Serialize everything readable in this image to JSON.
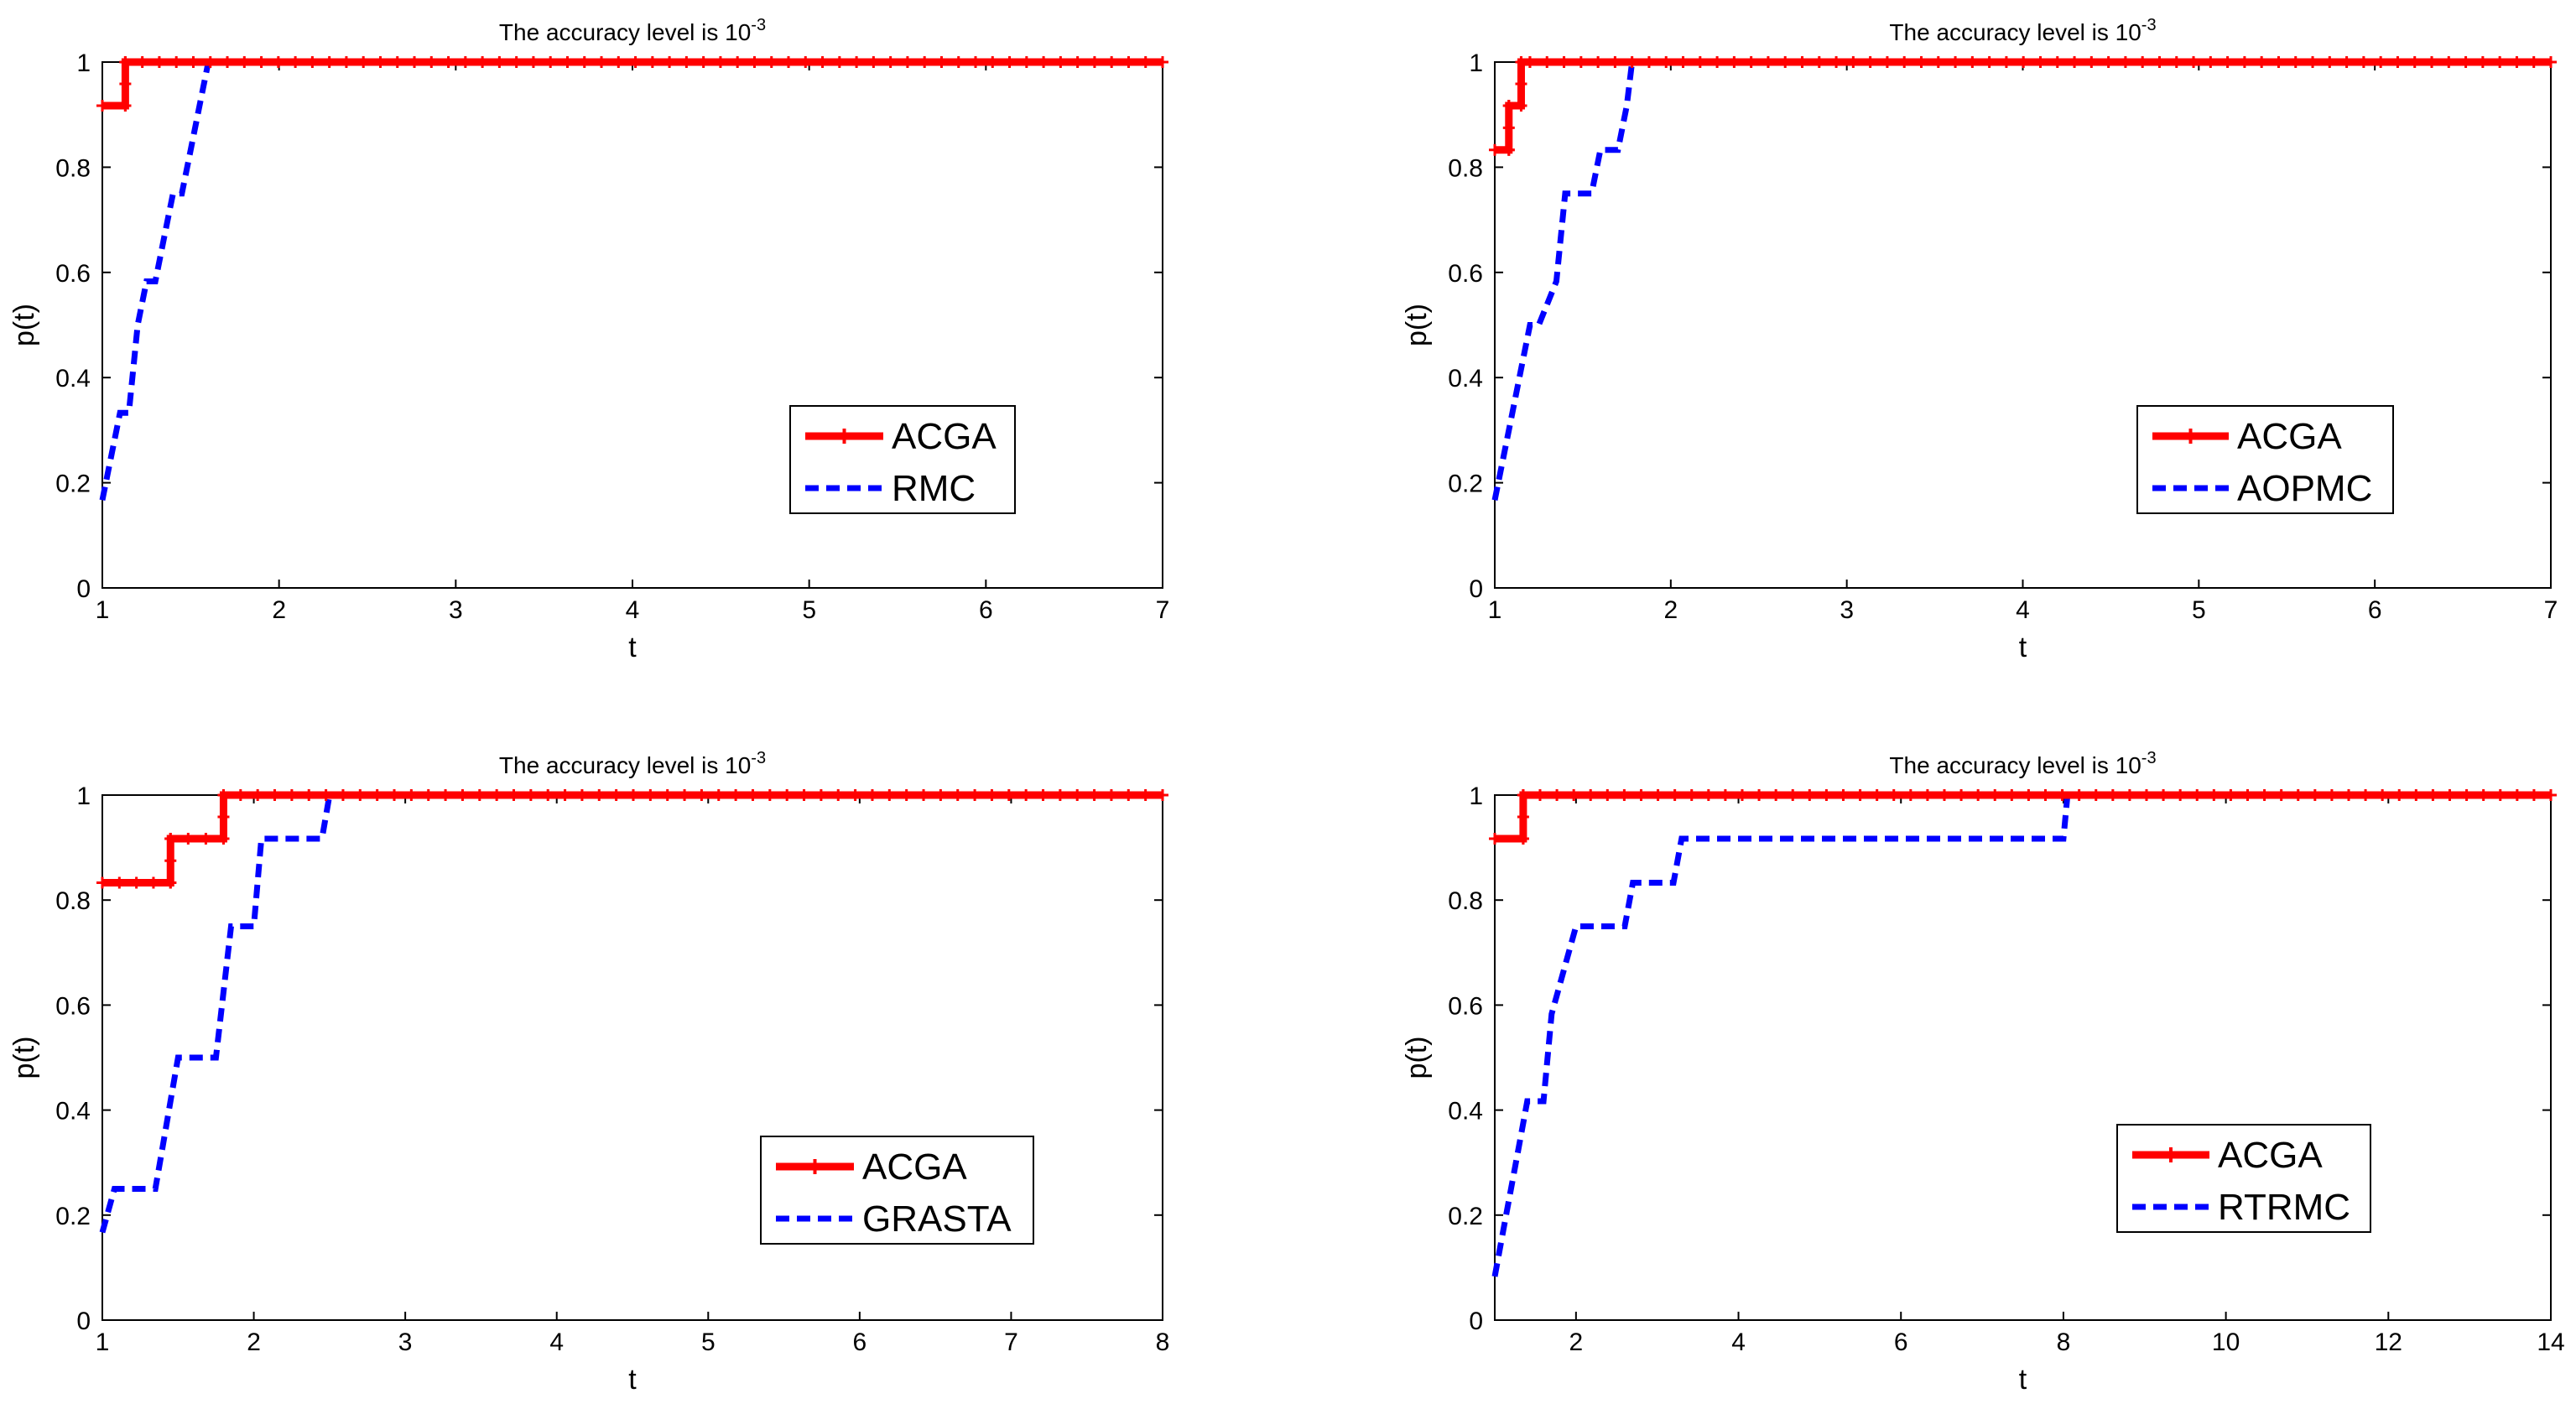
{
  "chart_data": [
    {
      "type": "line",
      "title": "The accuracy level is 10",
      "title_superscript": "-3",
      "xlabel": "t",
      "ylabel": "p(t)",
      "xlim": [
        1,
        7
      ],
      "ylim": [
        0,
        1
      ],
      "xticks": [
        1,
        2,
        3,
        4,
        5,
        6,
        7
      ],
      "yticks": [
        0,
        0.2,
        0.4,
        0.6,
        0.8,
        1
      ],
      "legend_location": "lower-right",
      "series": [
        {
          "name": "ACGA",
          "color": "#ff0000",
          "style": "solid-plus",
          "x": [
            1,
            1.13,
            1.13,
            7
          ],
          "y": [
            0.917,
            0.917,
            1,
            1
          ]
        },
        {
          "name": "RMC",
          "color": "#0000ff",
          "style": "dashed",
          "x": [
            1,
            1.05,
            1.1,
            1.15,
            1.2,
            1.25,
            1.3,
            1.35,
            1.4,
            1.45,
            1.5,
            1.55,
            1.6,
            7
          ],
          "y": [
            0.167,
            0.25,
            0.333,
            0.333,
            0.5,
            0.583,
            0.583,
            0.667,
            0.75,
            0.75,
            0.833,
            0.917,
            1,
            1
          ]
        }
      ]
    },
    {
      "type": "line",
      "title": "The accuracy level is 10",
      "title_superscript": "-3",
      "xlabel": "t",
      "ylabel": "p(t)",
      "xlim": [
        1,
        7
      ],
      "ylim": [
        0,
        1
      ],
      "xticks": [
        1,
        2,
        3,
        4,
        5,
        6,
        7
      ],
      "yticks": [
        0,
        0.2,
        0.4,
        0.6,
        0.8,
        1
      ],
      "legend_location": "lower-right",
      "series": [
        {
          "name": "ACGA",
          "color": "#ff0000",
          "style": "solid-plus",
          "x": [
            1,
            1.08,
            1.08,
            1.15,
            1.15,
            1.2,
            1.2,
            7
          ],
          "y": [
            0.833,
            0.833,
            0.917,
            0.917,
            1,
            1,
            1,
            1
          ]
        },
        {
          "name": "AOPMC",
          "color": "#0000ff",
          "style": "dashed",
          "x": [
            1,
            1.05,
            1.1,
            1.15,
            1.2,
            1.25,
            1.35,
            1.4,
            1.55,
            1.6,
            1.7,
            1.75,
            1.78,
            7
          ],
          "y": [
            0.167,
            0.25,
            0.333,
            0.417,
            0.5,
            0.5,
            0.583,
            0.75,
            0.75,
            0.833,
            0.833,
            0.917,
            1,
            1
          ]
        }
      ]
    },
    {
      "type": "line",
      "title": "The accuracy level is 10",
      "title_superscript": "-3",
      "xlabel": "t",
      "ylabel": "p(t)",
      "xlim": [
        1,
        8
      ],
      "ylim": [
        0,
        1
      ],
      "xticks": [
        1,
        2,
        3,
        4,
        5,
        6,
        7,
        8
      ],
      "yticks": [
        0,
        0.2,
        0.4,
        0.6,
        0.8,
        1
      ],
      "legend_location": "lower-right",
      "series": [
        {
          "name": "ACGA",
          "color": "#ff0000",
          "style": "solid-plus",
          "x": [
            1,
            1.45,
            1.45,
            1.8,
            1.8,
            8
          ],
          "y": [
            0.833,
            0.833,
            0.917,
            0.917,
            1,
            1
          ]
        },
        {
          "name": "GRASTA",
          "color": "#0000ff",
          "style": "dashed",
          "x": [
            1,
            1.08,
            1.35,
            1.4,
            1.45,
            1.5,
            1.75,
            1.85,
            2.0,
            2.05,
            2.45,
            2.5,
            8
          ],
          "y": [
            0.167,
            0.25,
            0.25,
            0.333,
            0.417,
            0.5,
            0.5,
            0.75,
            0.75,
            0.917,
            0.917,
            1,
            1
          ]
        }
      ]
    },
    {
      "type": "line",
      "title": "The accuracy level is 10",
      "title_superscript": "-3",
      "xlabel": "t",
      "ylabel": "p(t)",
      "xlim": [
        1,
        14
      ],
      "ylim": [
        0,
        1
      ],
      "xticks": [
        2,
        4,
        6,
        8,
        10,
        12,
        14
      ],
      "yticks": [
        0,
        0.2,
        0.4,
        0.6,
        0.8,
        1
      ],
      "legend_location": "lower-right",
      "series": [
        {
          "name": "ACGA",
          "color": "#ff0000",
          "style": "solid-plus",
          "x": [
            1,
            1.35,
            1.35,
            14
          ],
          "y": [
            0.917,
            0.917,
            1,
            1
          ]
        },
        {
          "name": "RTRMC",
          "color": "#0000ff",
          "style": "dashed",
          "x": [
            1,
            1.1,
            1.2,
            1.3,
            1.4,
            1.6,
            1.7,
            2.0,
            2.6,
            2.7,
            3.2,
            3.3,
            8.0,
            8.05,
            14
          ],
          "y": [
            0.083,
            0.167,
            0.25,
            0.333,
            0.417,
            0.417,
            0.583,
            0.75,
            0.75,
            0.833,
            0.833,
            0.917,
            0.917,
            1,
            1
          ]
        }
      ]
    }
  ]
}
